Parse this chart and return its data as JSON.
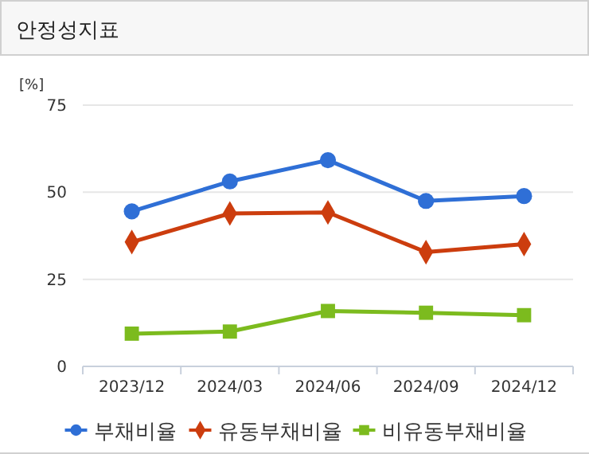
{
  "chart_data": {
    "type": "line",
    "title": "안정성지표",
    "ylabel": "[%]",
    "categories": [
      "2023/12",
      "2024/03",
      "2024/06",
      "2024/09",
      "2024/12"
    ],
    "series": [
      {
        "name": "부채비율",
        "color": "#2f6fd6",
        "marker": "circle",
        "values": [
          44.5,
          53.1,
          59.2,
          47.5,
          48.9
        ]
      },
      {
        "name": "유동부채비율",
        "color": "#cc3d0e",
        "marker": "diamond",
        "values": [
          35.7,
          43.9,
          44.2,
          32.8,
          35.1
        ]
      },
      {
        "name": "비유동부채비율",
        "color": "#7cbb1e",
        "marker": "square",
        "values": [
          9.4,
          10.0,
          15.9,
          15.4,
          14.7
        ]
      }
    ],
    "ylim": [
      0,
      75
    ],
    "yticks": [
      0,
      25,
      50,
      75
    ],
    "grid": "y",
    "legend": "bottom",
    "line_style": "solid"
  }
}
